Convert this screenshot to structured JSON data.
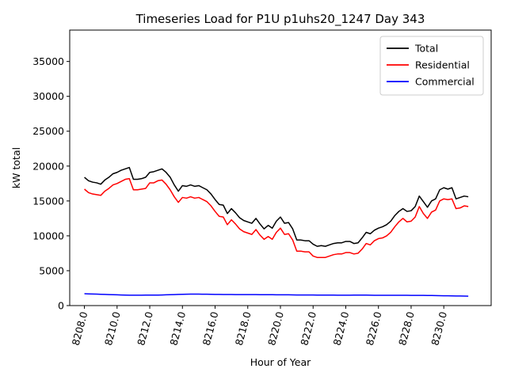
{
  "chart_data": {
    "type": "line",
    "title": "Timeseries Load for P1U p1uhs20_1247  Day 343",
    "xlabel": "Hour of Year",
    "ylabel": "kW total",
    "xlim": [
      8207.1,
      8232.9
    ],
    "ylim": [
      0,
      39500
    ],
    "xticks": [
      8208,
      8210,
      8212,
      8214,
      8216,
      8218,
      8220,
      8222,
      8224,
      8226,
      8228,
      8230
    ],
    "xtick_labels": [
      "8208.0",
      "8210.0",
      "8212.0",
      "8214.0",
      "8216.0",
      "8218.0",
      "8220.0",
      "8222.0",
      "8224.0",
      "8226.0",
      "8228.0",
      "8230.0"
    ],
    "yticks": [
      0,
      5000,
      10000,
      15000,
      20000,
      25000,
      30000,
      35000
    ],
    "ytick_labels": [
      "0",
      "5000",
      "10000",
      "15000",
      "20000",
      "25000",
      "30000",
      "35000"
    ],
    "legend_position": "top-right",
    "x_start": 8208,
    "x_step": 0.25,
    "series": [
      {
        "name": "Total",
        "color": "#000000",
        "values": [
          18400,
          17900,
          17700,
          17600,
          17400,
          18000,
          18400,
          18900,
          19100,
          19400,
          19600,
          19800,
          18100,
          18100,
          18200,
          18400,
          19100,
          19200,
          19400,
          19600,
          19100,
          18400,
          17300,
          16400,
          17200,
          17100,
          17300,
          17100,
          17200,
          16900,
          16600,
          16000,
          15200,
          14500,
          14400,
          13200,
          13900,
          13300,
          12600,
          12200,
          12000,
          11800,
          12500,
          11700,
          11000,
          11500,
          11100,
          12100,
          12700,
          11800,
          11900,
          11000,
          9400,
          9400,
          9300,
          9300,
          8800,
          8500,
          8600,
          8500,
          8700,
          8900,
          9000,
          9000,
          9200,
          9200,
          8900,
          9000,
          9700,
          10500,
          10300,
          10800,
          11100,
          11300,
          11600,
          12100,
          12900,
          13500,
          13900,
          13500,
          13600,
          14200,
          15700,
          14900,
          14100,
          15000,
          15300,
          16600,
          16900,
          16700,
          16900,
          15300,
          15500,
          15700,
          15600
        ]
      },
      {
        "name": "Residential",
        "color": "#ff0000",
        "values": [
          16700,
          16200,
          16000,
          15900,
          15800,
          16400,
          16800,
          17300,
          17500,
          17800,
          18100,
          18200,
          16600,
          16600,
          16700,
          16800,
          17600,
          17600,
          17900,
          18000,
          17400,
          16600,
          15600,
          14800,
          15500,
          15400,
          15600,
          15400,
          15500,
          15200,
          14900,
          14300,
          13500,
          12800,
          12700,
          11600,
          12300,
          11700,
          11000,
          10600,
          10400,
          10200,
          10900,
          10100,
          9500,
          9900,
          9500,
          10500,
          11100,
          10200,
          10300,
          9400,
          7800,
          7800,
          7700,
          7700,
          7100,
          6900,
          6900,
          6900,
          7100,
          7300,
          7400,
          7400,
          7600,
          7600,
          7400,
          7500,
          8100,
          8900,
          8700,
          9300,
          9600,
          9700,
          10000,
          10500,
          11300,
          12000,
          12500,
          12000,
          12100,
          12700,
          14200,
          13200,
          12500,
          13400,
          13700,
          15000,
          15300,
          15200,
          15300,
          13900,
          14000,
          14300,
          14200
        ]
      },
      {
        "name": "Commercial",
        "color": "#0000ff",
        "values": [
          1700,
          1680,
          1660,
          1640,
          1620,
          1600,
          1580,
          1560,
          1540,
          1520,
          1500,
          1490,
          1490,
          1490,
          1490,
          1500,
          1500,
          1500,
          1510,
          1520,
          1540,
          1560,
          1580,
          1600,
          1620,
          1630,
          1640,
          1640,
          1640,
          1630,
          1630,
          1620,
          1610,
          1600,
          1590,
          1590,
          1590,
          1580,
          1580,
          1570,
          1570,
          1570,
          1570,
          1560,
          1560,
          1560,
          1560,
          1550,
          1550,
          1550,
          1540,
          1530,
          1520,
          1520,
          1520,
          1520,
          1520,
          1510,
          1510,
          1510,
          1500,
          1500,
          1490,
          1490,
          1490,
          1490,
          1500,
          1500,
          1500,
          1500,
          1490,
          1480,
          1480,
          1480,
          1480,
          1480,
          1470,
          1470,
          1470,
          1470,
          1460,
          1460,
          1460,
          1460,
          1450,
          1440,
          1430,
          1420,
          1410,
          1400,
          1390,
          1380,
          1370,
          1360,
          1350
        ]
      }
    ]
  }
}
